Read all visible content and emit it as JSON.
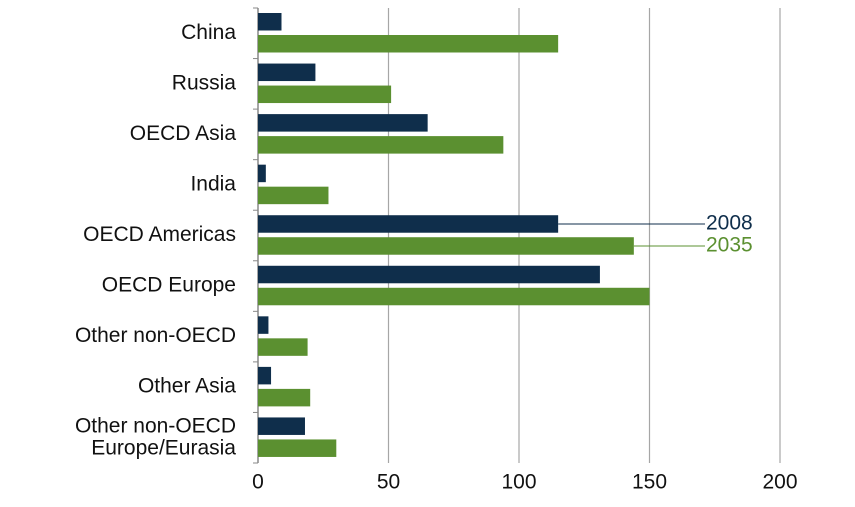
{
  "chart_data": {
    "type": "bar",
    "orientation": "horizontal",
    "categories": [
      "China",
      "Russia",
      "OECD Asia",
      "India",
      "OECD Americas",
      "OECD Europe",
      "Other non-OECD",
      "Other Asia",
      "Other non-OECD\nEurope/Eurasia"
    ],
    "series": [
      {
        "name": "2008",
        "color": "#0f2e4b",
        "values": [
          9,
          22,
          65,
          3,
          115,
          131,
          4,
          5,
          18
        ]
      },
      {
        "name": "2035",
        "color": "#5b9030",
        "values": [
          115,
          51,
          94,
          27,
          144,
          150,
          19,
          20,
          30
        ]
      }
    ],
    "xlim": [
      0,
      200
    ],
    "xticks": [
      0,
      50,
      100,
      150,
      200
    ],
    "grid": true
  }
}
